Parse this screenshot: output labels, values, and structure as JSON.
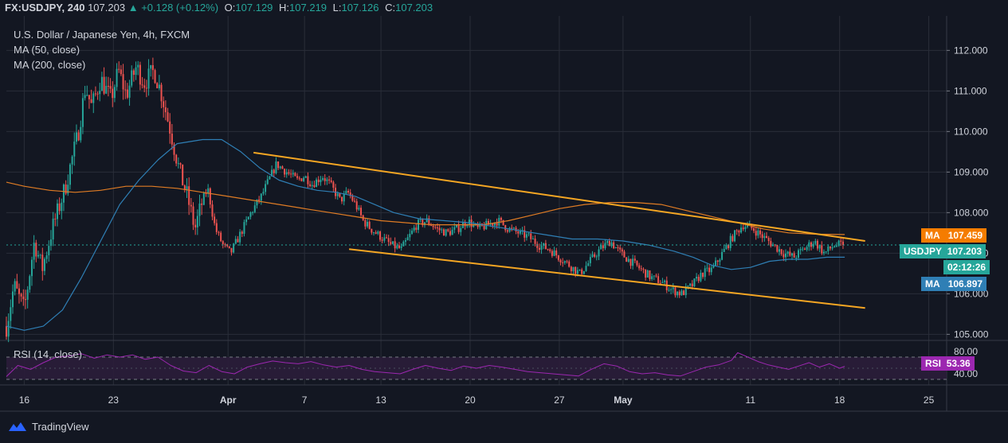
{
  "header": {
    "symbol": "FX:USDJPY, 240",
    "price": "107.203",
    "change_arrow": "▲",
    "change": "+0.128 (+0.12%)",
    "open_label": "O:",
    "open": "107.129",
    "high_label": "H:",
    "high": "107.219",
    "low_label": "L:",
    "low": "107.126",
    "close_label": "C:",
    "close": "107.203"
  },
  "legend": {
    "title": "U.S. Dollar / Japanese Yen, 4h, FXCM",
    "ma50": "MA (50, close)",
    "ma200": "MA (200, close)"
  },
  "rsi_legend": "RSI (14, close)",
  "badges": {
    "ma200_label": "MA",
    "ma200_value": "107.459",
    "price_label": "USDJPY",
    "price_value": "107.203",
    "countdown": "02:12:26",
    "ma50_label": "MA",
    "ma50_value": "106.897",
    "rsi_label": "RSI",
    "rsi_value": "53.36"
  },
  "colors": {
    "background": "#131722",
    "grid": "#2a2e39",
    "up": "#26a69a",
    "down": "#ef5350",
    "ma50": "#2f7fb5",
    "ma200": "#e07c24",
    "channel": "#f5a623",
    "rsi": "#9c27b0",
    "rsi_band": "#2b1d3a"
  },
  "footer": {
    "brand": "TradingView",
    "logo_icon": "tradingview-logo-icon"
  },
  "chart_data": [
    {
      "type": "candlestick",
      "title": "U.S. Dollar / Japanese Yen, 4h, FXCM",
      "ylim": [
        104.85,
        112.85
      ],
      "y_ticks": [
        "112.000",
        "111.000",
        "110.000",
        "109.000",
        "108.000",
        "107.000",
        "106.000",
        "105.000"
      ],
      "y_tick_values": [
        112,
        111,
        110,
        109,
        108,
        107,
        106,
        105
      ],
      "x_ticks": [
        "16",
        "23",
        "Apr",
        "7",
        "13",
        "20",
        "27",
        "May",
        "11",
        "18",
        "25"
      ],
      "x_tick_days": [
        16,
        23,
        32,
        38,
        44,
        51,
        58,
        63,
        73,
        80,
        87
      ],
      "x_axis_unit": "day index from March 1, 2020",
      "anchors": [
        [
          14.6,
          105.2
        ],
        [
          15.2,
          106.2
        ],
        [
          16.0,
          105.6
        ],
        [
          16.8,
          107.3
        ],
        [
          17.4,
          106.6
        ],
        [
          18.2,
          107.6
        ],
        [
          19.2,
          108.6
        ],
        [
          20.2,
          109.9
        ],
        [
          20.8,
          111.1
        ],
        [
          21.3,
          110.6
        ],
        [
          22.0,
          111.3
        ],
        [
          22.8,
          110.8
        ],
        [
          23.4,
          111.5
        ],
        [
          24.0,
          110.9
        ],
        [
          24.8,
          111.6
        ],
        [
          25.4,
          111.2
        ],
        [
          26.2,
          111.5
        ],
        [
          26.8,
          110.9
        ],
        [
          27.5,
          110.0
        ],
        [
          28.2,
          109.0
        ],
        [
          28.8,
          108.4
        ],
        [
          29.4,
          107.6
        ],
        [
          30.0,
          108.3
        ],
        [
          30.4,
          108.6
        ],
        [
          31.0,
          107.6
        ],
        [
          31.6,
          107.2
        ],
        [
          32.2,
          107.0
        ],
        [
          33.0,
          107.5
        ],
        [
          33.8,
          108.0
        ],
        [
          34.6,
          108.4
        ],
        [
          35.2,
          108.8
        ],
        [
          35.8,
          109.2
        ],
        [
          36.6,
          109.0
        ],
        [
          37.4,
          108.8
        ],
        [
          38.0,
          108.9
        ],
        [
          38.6,
          108.7
        ],
        [
          39.4,
          108.9
        ],
        [
          40.0,
          108.7
        ],
        [
          40.8,
          108.3
        ],
        [
          41.4,
          108.5
        ],
        [
          42.0,
          108.2
        ],
        [
          42.6,
          107.8
        ],
        [
          43.2,
          107.6
        ],
        [
          44.0,
          107.4
        ],
        [
          44.8,
          107.2
        ],
        [
          45.6,
          107.1
        ],
        [
          46.2,
          107.4
        ],
        [
          46.8,
          107.7
        ],
        [
          47.6,
          107.8
        ],
        [
          48.4,
          107.6
        ],
        [
          49.2,
          107.5
        ],
        [
          50.0,
          107.6
        ],
        [
          50.8,
          107.8
        ],
        [
          51.6,
          107.6
        ],
        [
          52.4,
          107.7
        ],
        [
          53.2,
          107.8
        ],
        [
          54.0,
          107.6
        ],
        [
          54.8,
          107.5
        ],
        [
          55.6,
          107.4
        ],
        [
          56.4,
          107.2
        ],
        [
          57.2,
          107.1
        ],
        [
          58.0,
          106.9
        ],
        [
          58.8,
          106.7
        ],
        [
          59.6,
          106.5
        ],
        [
          60.4,
          106.8
        ],
        [
          61.2,
          107.1
        ],
        [
          62.0,
          107.3
        ],
        [
          62.8,
          107.0
        ],
        [
          63.6,
          106.8
        ],
        [
          64.4,
          106.6
        ],
        [
          65.2,
          106.4
        ],
        [
          66.0,
          106.3
        ],
        [
          66.8,
          106.1
        ],
        [
          67.6,
          106.0
        ],
        [
          68.4,
          106.2
        ],
        [
          69.2,
          106.5
        ],
        [
          70.0,
          106.6
        ],
        [
          70.8,
          107.0
        ],
        [
          71.6,
          107.4
        ],
        [
          72.4,
          107.7
        ],
        [
          73.2,
          107.6
        ],
        [
          74.0,
          107.4
        ],
        [
          74.8,
          107.2
        ],
        [
          75.6,
          107.0
        ],
        [
          76.4,
          106.9
        ],
        [
          77.2,
          107.1
        ],
        [
          78.0,
          107.3
        ],
        [
          78.8,
          107.0
        ],
        [
          79.6,
          107.2
        ],
        [
          80.4,
          107.2
        ]
      ]
    },
    {
      "type": "line",
      "name": "MA (50, close)",
      "y_last": 106.897,
      "points": [
        [
          14.6,
          105.2
        ],
        [
          16.0,
          105.1
        ],
        [
          17.5,
          105.2
        ],
        [
          19.0,
          105.6
        ],
        [
          20.5,
          106.4
        ],
        [
          22.0,
          107.3
        ],
        [
          23.5,
          108.2
        ],
        [
          25.0,
          108.8
        ],
        [
          26.5,
          109.3
        ],
        [
          28.0,
          109.7
        ],
        [
          30.0,
          109.8
        ],
        [
          31.5,
          109.8
        ],
        [
          33.0,
          109.5
        ],
        [
          34.5,
          109.1
        ],
        [
          36.0,
          108.8
        ],
        [
          37.5,
          108.65
        ],
        [
          39.0,
          108.55
        ],
        [
          40.5,
          108.5
        ],
        [
          42.0,
          108.4
        ],
        [
          43.5,
          108.2
        ],
        [
          45.0,
          108.0
        ],
        [
          47.0,
          107.85
        ],
        [
          49.0,
          107.8
        ],
        [
          51.0,
          107.75
        ],
        [
          53.0,
          107.65
        ],
        [
          55.0,
          107.55
        ],
        [
          57.0,
          107.45
        ],
        [
          59.0,
          107.35
        ],
        [
          61.0,
          107.35
        ],
        [
          63.0,
          107.3
        ],
        [
          65.0,
          107.2
        ],
        [
          67.0,
          107.05
        ],
        [
          68.5,
          106.9
        ],
        [
          70.0,
          106.7
        ],
        [
          71.5,
          106.6
        ],
        [
          73.0,
          106.65
        ],
        [
          74.5,
          106.8
        ],
        [
          76.0,
          106.85
        ],
        [
          77.5,
          106.85
        ],
        [
          79.0,
          106.9
        ],
        [
          80.4,
          106.9
        ]
      ]
    },
    {
      "type": "line",
      "name": "MA (200, close)",
      "y_last": 107.459,
      "points": [
        [
          14.6,
          108.75
        ],
        [
          16.0,
          108.65
        ],
        [
          18.0,
          108.55
        ],
        [
          20.0,
          108.5
        ],
        [
          22.0,
          108.55
        ],
        [
          24.0,
          108.65
        ],
        [
          26.0,
          108.65
        ],
        [
          28.0,
          108.6
        ],
        [
          30.0,
          108.5
        ],
        [
          32.0,
          108.4
        ],
        [
          34.0,
          108.3
        ],
        [
          36.0,
          108.2
        ],
        [
          38.0,
          108.1
        ],
        [
          40.0,
          108.0
        ],
        [
          42.0,
          107.9
        ],
        [
          44.0,
          107.8
        ],
        [
          46.0,
          107.75
        ],
        [
          48.0,
          107.7
        ],
        [
          50.0,
          107.7
        ],
        [
          52.0,
          107.7
        ],
        [
          54.0,
          107.8
        ],
        [
          56.0,
          107.95
        ],
        [
          58.0,
          108.1
        ],
        [
          60.0,
          108.2
        ],
        [
          62.0,
          108.25
        ],
        [
          64.0,
          108.25
        ],
        [
          66.0,
          108.2
        ],
        [
          68.0,
          108.05
        ],
        [
          70.0,
          107.9
        ],
        [
          72.0,
          107.75
        ],
        [
          74.0,
          107.6
        ],
        [
          76.0,
          107.5
        ],
        [
          78.0,
          107.47
        ],
        [
          80.4,
          107.46
        ]
      ]
    },
    {
      "type": "line",
      "name": "channel-upper",
      "points": [
        [
          34.0,
          109.48
        ],
        [
          82.0,
          107.3
        ]
      ]
    },
    {
      "type": "line",
      "name": "channel-lower",
      "points": [
        [
          41.5,
          107.1
        ],
        [
          82.0,
          105.65
        ]
      ]
    },
    {
      "type": "line",
      "name": "RSI (14, close)",
      "ylim": [
        20,
        100
      ],
      "y_ticks": [
        "80.00",
        "40.00"
      ],
      "y_tick_values": [
        80,
        40
      ],
      "bands": [
        70,
        30
      ],
      "y_last": 53.36,
      "points": [
        [
          14.6,
          35
        ],
        [
          15.5,
          55
        ],
        [
          16.5,
          48
        ],
        [
          17.5,
          60
        ],
        [
          18.5,
          70
        ],
        [
          19.5,
          72
        ],
        [
          20.5,
          76
        ],
        [
          21.5,
          68
        ],
        [
          22.5,
          74
        ],
        [
          23.5,
          70
        ],
        [
          24.5,
          74
        ],
        [
          25.5,
          66
        ],
        [
          26.5,
          70
        ],
        [
          27.5,
          55
        ],
        [
          28.5,
          45
        ],
        [
          29.5,
          42
        ],
        [
          30.5,
          55
        ],
        [
          31.5,
          44
        ],
        [
          32.5,
          40
        ],
        [
          33.5,
          52
        ],
        [
          34.5,
          58
        ],
        [
          35.5,
          63
        ],
        [
          36.5,
          60
        ],
        [
          37.5,
          58
        ],
        [
          38.5,
          62
        ],
        [
          39.5,
          56
        ],
        [
          40.5,
          52
        ],
        [
          41.5,
          55
        ],
        [
          42.5,
          48
        ],
        [
          43.5,
          44
        ],
        [
          44.5,
          42
        ],
        [
          45.5,
          40
        ],
        [
          46.5,
          48
        ],
        [
          47.5,
          55
        ],
        [
          48.5,
          50
        ],
        [
          49.5,
          46
        ],
        [
          50.5,
          54
        ],
        [
          51.5,
          50
        ],
        [
          52.5,
          55
        ],
        [
          53.5,
          52
        ],
        [
          54.5,
          48
        ],
        [
          55.5,
          44
        ],
        [
          56.5,
          42
        ],
        [
          57.5,
          40
        ],
        [
          58.5,
          38
        ],
        [
          59.5,
          36
        ],
        [
          60.5,
          48
        ],
        [
          61.5,
          58
        ],
        [
          62.5,
          54
        ],
        [
          63.5,
          44
        ],
        [
          64.5,
          40
        ],
        [
          65.5,
          42
        ],
        [
          66.5,
          38
        ],
        [
          67.5,
          36
        ],
        [
          68.5,
          44
        ],
        [
          69.5,
          52
        ],
        [
          70.5,
          56
        ],
        [
          71.5,
          64
        ],
        [
          72.0,
          78
        ],
        [
          72.8,
          70
        ],
        [
          73.6,
          62
        ],
        [
          74.4,
          56
        ],
        [
          75.2,
          52
        ],
        [
          76.0,
          48
        ],
        [
          76.8,
          54
        ],
        [
          77.6,
          60
        ],
        [
          78.4,
          52
        ],
        [
          79.2,
          58
        ],
        [
          80.0,
          50
        ],
        [
          80.4,
          53.36
        ]
      ]
    }
  ]
}
